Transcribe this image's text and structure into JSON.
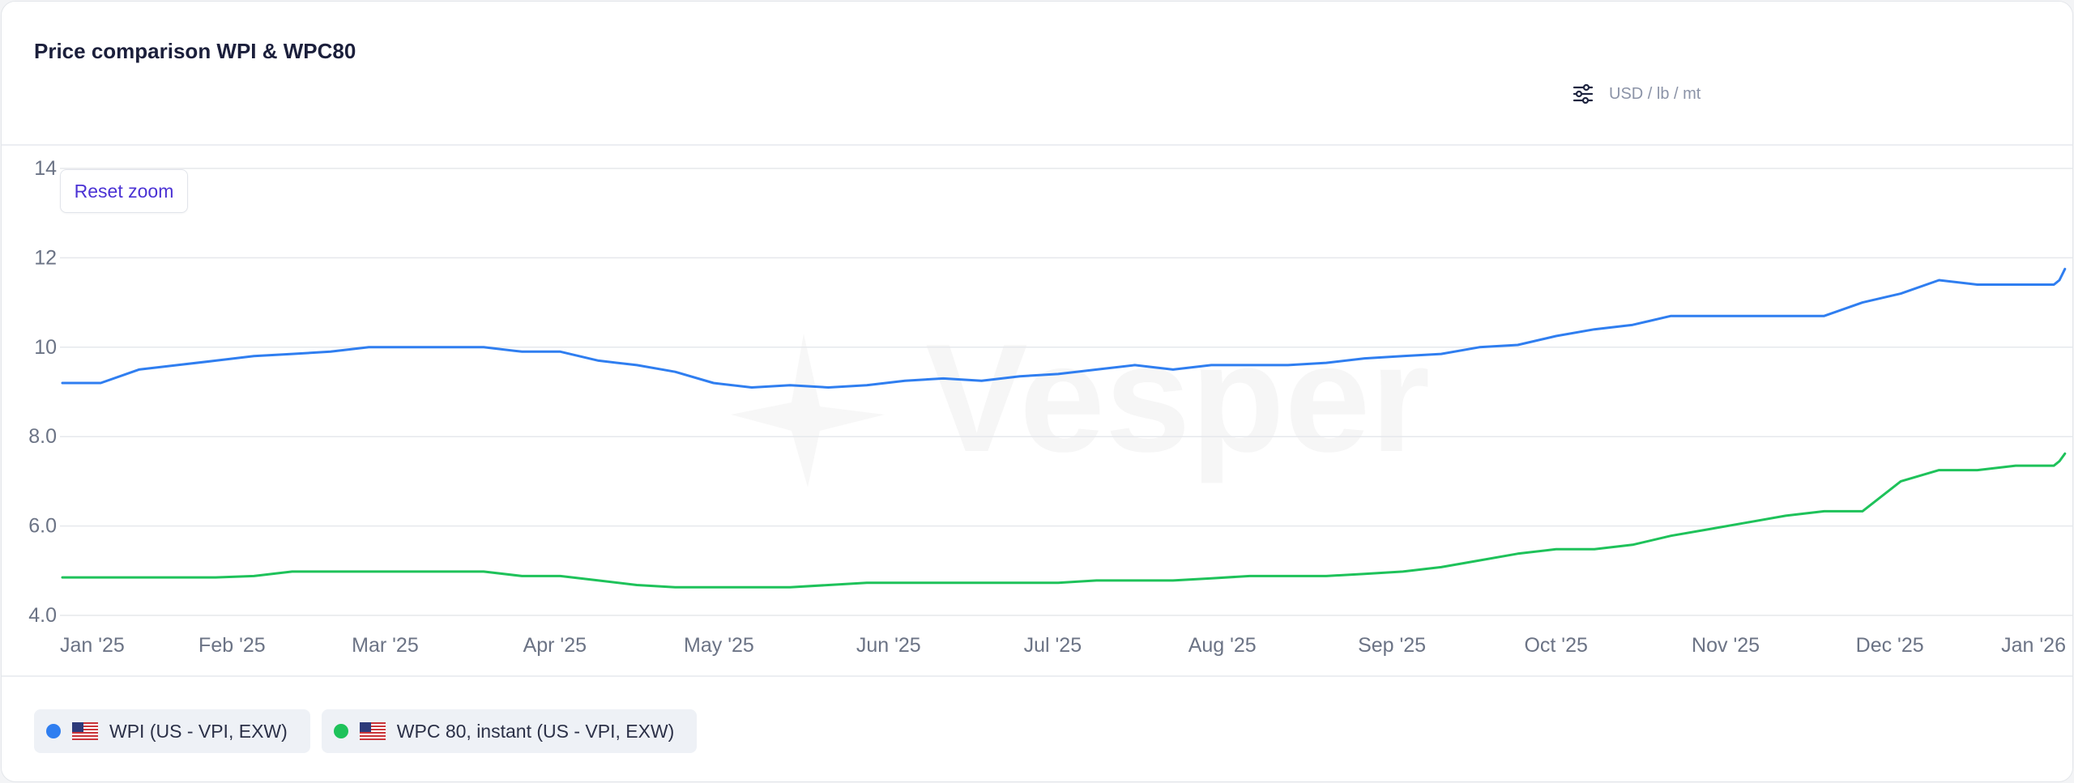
{
  "header": {
    "title": "Price comparison WPI & WPC80",
    "unit": "USD / lb / mt",
    "settings_icon": "sliders-icon"
  },
  "controls": {
    "reset_zoom": "Reset zoom"
  },
  "chart_data": {
    "type": "line",
    "title": "Price comparison WPI & WPC80",
    "xlabel": "",
    "ylabel": "",
    "ylim": [
      4.0,
      14.0
    ],
    "yticks": [
      "4.0",
      "6.0",
      "8.0",
      "10",
      "12",
      "14"
    ],
    "ytick_values": [
      4,
      6,
      8,
      10,
      12,
      14
    ],
    "xlim": [
      "2025-01-01",
      "2026-01-01"
    ],
    "xticks": [
      "Jan '25",
      "Feb '25",
      "Mar '25",
      "Apr '25",
      "May '25",
      "Jun '25",
      "Jul '25",
      "Aug '25",
      "Sep '25",
      "Oct '25",
      "Nov '25",
      "Dec '25",
      "Jan '26"
    ],
    "xtick_dates": [
      "2025-01-01",
      "2025-02-01",
      "2025-03-01",
      "2025-04-01",
      "2025-05-01",
      "2025-06-01",
      "2025-07-01",
      "2025-08-01",
      "2025-09-01",
      "2025-10-01",
      "2025-11-01",
      "2025-12-01",
      "2026-01-01"
    ],
    "grid": true,
    "legend_position": "bottom-left",
    "watermark": "Vesper",
    "x": [
      "2025-01-01",
      "2025-01-08",
      "2025-01-15",
      "2025-01-22",
      "2025-01-29",
      "2025-02-05",
      "2025-02-12",
      "2025-02-19",
      "2025-02-26",
      "2025-03-05",
      "2025-03-12",
      "2025-03-19",
      "2025-03-26",
      "2025-04-02",
      "2025-04-09",
      "2025-04-16",
      "2025-04-23",
      "2025-04-30",
      "2025-05-07",
      "2025-05-14",
      "2025-05-21",
      "2025-05-28",
      "2025-06-04",
      "2025-06-11",
      "2025-06-18",
      "2025-06-25",
      "2025-07-02",
      "2025-07-09",
      "2025-07-16",
      "2025-07-23",
      "2025-07-30",
      "2025-08-06",
      "2025-08-13",
      "2025-08-20",
      "2025-08-27",
      "2025-09-03",
      "2025-09-10",
      "2025-09-17",
      "2025-09-24",
      "2025-10-01",
      "2025-10-08",
      "2025-10-15",
      "2025-10-22",
      "2025-10-29",
      "2025-11-05",
      "2025-11-12",
      "2025-11-19",
      "2025-11-26",
      "2025-12-03",
      "2025-12-10",
      "2025-12-17",
      "2025-12-24",
      "2025-12-31",
      "2026-01-01"
    ],
    "series": [
      {
        "name": "WPI (US - VPI, EXW)",
        "color": "#2f7ef0",
        "values": [
          9.2,
          9.2,
          9.5,
          9.6,
          9.7,
          9.8,
          9.85,
          9.9,
          10.0,
          10.0,
          10.0,
          10.0,
          9.9,
          9.9,
          9.7,
          9.6,
          9.45,
          9.2,
          9.1,
          9.15,
          9.1,
          9.15,
          9.25,
          9.3,
          9.25,
          9.35,
          9.4,
          9.5,
          9.6,
          9.5,
          9.6,
          9.6,
          9.6,
          9.65,
          9.75,
          9.8,
          9.85,
          10.0,
          10.05,
          10.25,
          10.4,
          10.5,
          10.7,
          10.7,
          10.7,
          10.7,
          10.7,
          11.0,
          11.2,
          11.5,
          11.4,
          11.4,
          11.4,
          11.5
        ]
      },
      {
        "name": "WPC 80, instant (US - VPI, EXW)",
        "color": "#1ec25a",
        "values": [
          4.85,
          4.85,
          4.85,
          4.85,
          4.85,
          4.88,
          4.98,
          4.98,
          4.98,
          4.98,
          4.98,
          4.98,
          4.88,
          4.88,
          4.78,
          4.68,
          4.63,
          4.63,
          4.63,
          4.63,
          4.68,
          4.73,
          4.73,
          4.73,
          4.73,
          4.73,
          4.73,
          4.78,
          4.78,
          4.78,
          4.83,
          4.88,
          4.88,
          4.88,
          4.93,
          4.98,
          5.08,
          5.23,
          5.38,
          5.48,
          5.48,
          5.58,
          5.78,
          5.93,
          6.08,
          6.23,
          6.33,
          6.33,
          7.0,
          7.25,
          7.25,
          7.35,
          7.35,
          7.45
        ]
      }
    ],
    "series_end": [
      {
        "x": "2026-01-02",
        "wpi": 11.75,
        "wpc": 7.62
      }
    ]
  },
  "legend": {
    "items": [
      {
        "label": "WPI (US - VPI, EXW)",
        "color": "#2f7ef0",
        "flag": "us-flag-icon"
      },
      {
        "label": "WPC 80, instant (US - VPI, EXW)",
        "color": "#1ec25a",
        "flag": "us-flag-icon"
      }
    ]
  }
}
